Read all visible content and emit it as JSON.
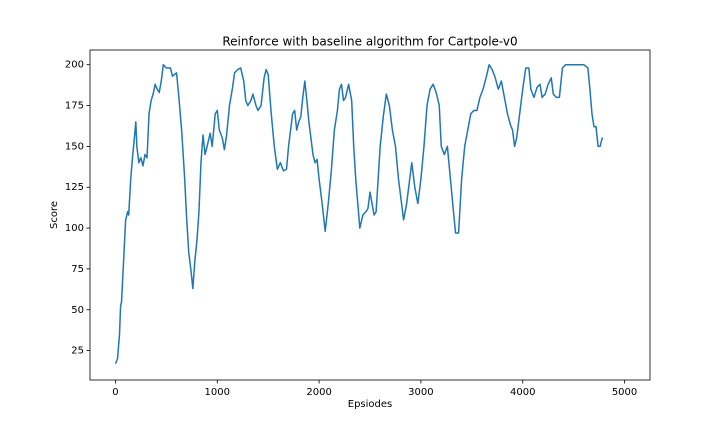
{
  "chart_data": {
    "type": "line",
    "title": "Reinforce with baseline algorithm for Cartpole-v0",
    "x_label": "Epsiodes",
    "y_label": "Score",
    "x": [
      0,
      20,
      40,
      50,
      60,
      80,
      100,
      120,
      130,
      150,
      170,
      190,
      200,
      210,
      230,
      250,
      270,
      290,
      310,
      330,
      350,
      370,
      390,
      410,
      430,
      450,
      470,
      500,
      540,
      560,
      600,
      620,
      650,
      680,
      700,
      720,
      740,
      760,
      780,
      800,
      820,
      840,
      860,
      880,
      900,
      930,
      950,
      980,
      1000,
      1020,
      1050,
      1070,
      1090,
      1120,
      1150,
      1170,
      1200,
      1230,
      1260,
      1280,
      1300,
      1330,
      1350,
      1380,
      1400,
      1430,
      1460,
      1480,
      1500,
      1530,
      1560,
      1590,
      1620,
      1650,
      1680,
      1700,
      1720,
      1740,
      1760,
      1780,
      1800,
      1820,
      1840,
      1860,
      1880,
      1900,
      1920,
      1940,
      1960,
      1980,
      2000,
      2030,
      2060,
      2090,
      2120,
      2150,
      2180,
      2200,
      2220,
      2240,
      2260,
      2290,
      2320,
      2340,
      2360,
      2380,
      2400,
      2430,
      2460,
      2480,
      2500,
      2520,
      2540,
      2560,
      2580,
      2600,
      2630,
      2660,
      2690,
      2720,
      2750,
      2780,
      2810,
      2830,
      2860,
      2890,
      2910,
      2940,
      2970,
      3000,
      3030,
      3060,
      3090,
      3120,
      3150,
      3180,
      3200,
      3230,
      3260,
      3290,
      3320,
      3340,
      3370,
      3400,
      3430,
      3460,
      3490,
      3520,
      3550,
      3580,
      3610,
      3640,
      3670,
      3700,
      3730,
      3760,
      3790,
      3820,
      3850,
      3880,
      3900,
      3920,
      3940,
      3970,
      4000,
      4030,
      4060,
      4080,
      4110,
      4140,
      4170,
      4190,
      4220,
      4250,
      4280,
      4300,
      4330,
      4360,
      4390,
      4420,
      4500,
      4600,
      4640,
      4660,
      4680,
      4700,
      4720,
      4740,
      4760,
      4780,
      4790
    ],
    "series": [
      {
        "color": "#1f77b4",
        "values": [
          17,
          20,
          35,
          52,
          55,
          80,
          105,
          110,
          108,
          130,
          145,
          158,
          165,
          150,
          140,
          143,
          138,
          145,
          143,
          170,
          178,
          182,
          188,
          185,
          183,
          190,
          200,
          198,
          198,
          193,
          195,
          182,
          160,
          130,
          105,
          85,
          75,
          63,
          80,
          92,
          110,
          140,
          157,
          145,
          150,
          158,
          150,
          170,
          172,
          160,
          155,
          148,
          156,
          175,
          186,
          195,
          197,
          198,
          190,
          178,
          175,
          178,
          182,
          175,
          172,
          175,
          192,
          197,
          194,
          170,
          150,
          136,
          140,
          135,
          136,
          150,
          160,
          170,
          172,
          160,
          165,
          168,
          180,
          190,
          178,
          165,
          155,
          145,
          140,
          142,
          130,
          115,
          98,
          115,
          135,
          160,
          172,
          185,
          188,
          178,
          180,
          188,
          178,
          150,
          130,
          115,
          100,
          108,
          110,
          112,
          122,
          115,
          108,
          110,
          130,
          150,
          168,
          182,
          175,
          160,
          150,
          130,
          115,
          105,
          115,
          130,
          140,
          125,
          115,
          130,
          150,
          175,
          185,
          188,
          183,
          175,
          150,
          145,
          150,
          130,
          110,
          97,
          97,
          130,
          150,
          160,
          170,
          172,
          172,
          180,
          185,
          192,
          200,
          197,
          192,
          185,
          190,
          180,
          170,
          163,
          160,
          150,
          155,
          170,
          185,
          198,
          198,
          185,
          180,
          186,
          188,
          180,
          182,
          188,
          192,
          182,
          180,
          180,
          198,
          200,
          200,
          200,
          198,
          185,
          170,
          162,
          162,
          150,
          150,
          155,
          155
        ]
      }
    ],
    "xlim": [
      -250,
      5250
    ],
    "ylim": [
      7,
      209
    ],
    "xticks": [
      0,
      1000,
      2000,
      3000,
      4000,
      5000
    ],
    "yticks": [
      25,
      50,
      75,
      100,
      125,
      150,
      175,
      200
    ]
  }
}
